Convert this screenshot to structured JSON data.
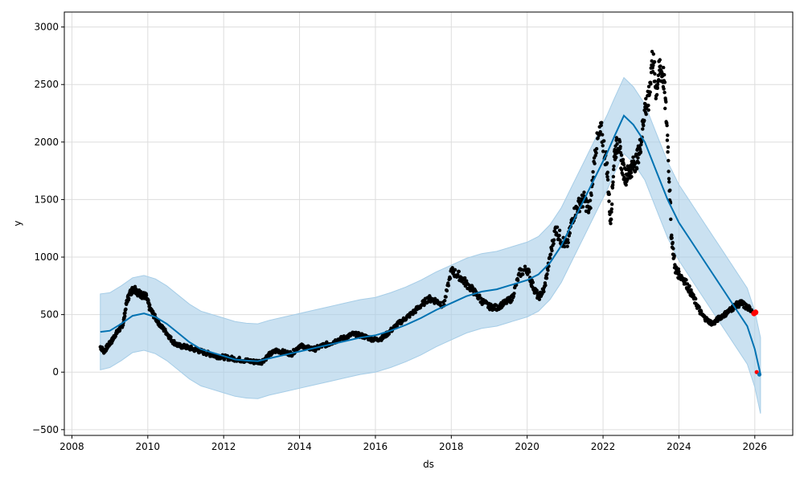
{
  "chart_data": {
    "type": "line",
    "title": "",
    "xlabel": "ds",
    "ylabel": "y",
    "xlim": [
      2007.8,
      2027.0
    ],
    "ylim": [
      -550,
      3130
    ],
    "grid": true,
    "x_ticks": [
      2008,
      2010,
      2012,
      2014,
      2016,
      2018,
      2020,
      2022,
      2024,
      2026
    ],
    "x_tick_labels": [
      "2008",
      "2010",
      "2012",
      "2014",
      "2016",
      "2018",
      "2020",
      "2022",
      "2024",
      "2026"
    ],
    "y_ticks": [
      -500,
      0,
      500,
      1000,
      1500,
      2000,
      2500,
      3000
    ],
    "y_tick_labels": [
      "−500",
      "0",
      "500",
      "1000",
      "1500",
      "2000",
      "2500",
      "3000"
    ],
    "colors": {
      "forecast": "#0072b2",
      "interval": "#a6cde7",
      "observed": "#000000",
      "future": "#ff0000",
      "grid": "#dddddd"
    },
    "forecast": {
      "x": [
        2008.75,
        2009.0,
        2009.3,
        2009.6,
        2009.9,
        2010.2,
        2010.5,
        2010.8,
        2011.1,
        2011.4,
        2011.7,
        2012.0,
        2012.3,
        2012.6,
        2012.9,
        2013.2,
        2013.6,
        2014.0,
        2014.4,
        2014.8,
        2015.2,
        2015.6,
        2016.0,
        2016.4,
        2016.8,
        2017.2,
        2017.6,
        2018.0,
        2018.4,
        2018.8,
        2019.2,
        2019.6,
        2020.0,
        2020.3,
        2020.6,
        2020.9,
        2021.2,
        2021.5,
        2021.8,
        2022.1,
        2022.3,
        2022.55,
        2022.8,
        2023.1,
        2023.4,
        2023.7,
        2024.0,
        2024.3,
        2024.6,
        2024.9,
        2025.2,
        2025.5,
        2025.8,
        2026.0,
        2026.15
      ],
      "y": [
        350,
        360,
        420,
        490,
        510,
        480,
        420,
        340,
        260,
        200,
        170,
        140,
        110,
        100,
        95,
        120,
        150,
        180,
        210,
        240,
        270,
        300,
        320,
        360,
        410,
        470,
        540,
        600,
        660,
        700,
        720,
        760,
        800,
        850,
        950,
        1100,
        1300,
        1500,
        1700,
        1900,
        2050,
        2230,
        2150,
        2000,
        1750,
        1500,
        1300,
        1150,
        1000,
        850,
        700,
        550,
        400,
        200,
        -20
      ],
      "lower": [
        20,
        40,
        100,
        170,
        190,
        160,
        100,
        20,
        -60,
        -120,
        -150,
        -180,
        -210,
        -225,
        -230,
        -200,
        -170,
        -140,
        -110,
        -80,
        -50,
        -20,
        0,
        40,
        90,
        150,
        220,
        280,
        340,
        380,
        400,
        440,
        480,
        530,
        630,
        780,
        980,
        1180,
        1380,
        1580,
        1730,
        1900,
        1820,
        1670,
        1420,
        1170,
        970,
        820,
        670,
        520,
        370,
        220,
        70,
        -130,
        -360
      ],
      "upper": [
        680,
        690,
        750,
        820,
        840,
        810,
        750,
        670,
        590,
        530,
        500,
        470,
        440,
        425,
        420,
        450,
        480,
        510,
        540,
        570,
        600,
        630,
        650,
        690,
        740,
        800,
        870,
        930,
        990,
        1030,
        1050,
        1090,
        1130,
        1180,
        1280,
        1430,
        1630,
        1830,
        2030,
        2230,
        2380,
        2560,
        2480,
        2330,
        2080,
        1830,
        1630,
        1480,
        1330,
        1180,
        1030,
        880,
        730,
        530,
        300
      ]
    },
    "observed": {
      "x": [
        2008.75,
        2008.85,
        2008.95,
        2009.05,
        2009.15,
        2009.25,
        2009.35,
        2009.45,
        2009.55,
        2009.65,
        2009.75,
        2009.85,
        2009.95,
        2010.05,
        2010.2,
        2010.35,
        2010.5,
        2010.65,
        2010.8,
        2011.0,
        2011.2,
        2011.4,
        2011.6,
        2011.8,
        2012.0,
        2012.2,
        2012.4,
        2012.6,
        2012.8,
        2013.0,
        2013.2,
        2013.4,
        2013.6,
        2013.8,
        2014.0,
        2014.2,
        2014.4,
        2014.6,
        2014.8,
        2015.0,
        2015.2,
        2015.4,
        2015.6,
        2015.8,
        2016.0,
        2016.2,
        2016.4,
        2016.6,
        2016.8,
        2017.0,
        2017.2,
        2017.4,
        2017.6,
        2017.8,
        2018.0,
        2018.2,
        2018.4,
        2018.6,
        2018.8,
        2019.0,
        2019.2,
        2019.4,
        2019.6,
        2019.8,
        2020.0,
        2020.15,
        2020.3,
        2020.45,
        2020.6,
        2020.75,
        2020.9,
        2021.05,
        2021.2,
        2021.35,
        2021.5,
        2021.65,
        2021.8,
        2021.95,
        2022.1,
        2022.2,
        2022.3,
        2022.4,
        2022.5,
        2022.6,
        2022.7,
        2022.8,
        2022.9,
        2023.0,
        2023.1,
        2023.2,
        2023.3,
        2023.4,
        2023.5,
        2023.6,
        2023.7,
        2023.8,
        2023.9,
        2024.0,
        2024.15,
        2024.3,
        2024.45,
        2024.6,
        2024.75,
        2024.9,
        2025.05,
        2025.2,
        2025.35,
        2025.5,
        2025.65,
        2025.8,
        2025.95
      ],
      "y": [
        220,
        180,
        230,
        270,
        330,
        370,
        420,
        620,
        700,
        730,
        690,
        670,
        660,
        560,
        470,
        400,
        340,
        270,
        230,
        220,
        200,
        180,
        160,
        140,
        130,
        120,
        110,
        100,
        90,
        90,
        150,
        190,
        170,
        160,
        230,
        210,
        200,
        230,
        250,
        280,
        300,
        330,
        320,
        300,
        280,
        300,
        360,
        420,
        470,
        520,
        580,
        640,
        620,
        580,
        880,
        840,
        770,
        700,
        620,
        570,
        560,
        600,
        640,
        860,
        900,
        750,
        650,
        720,
        1000,
        1250,
        1150,
        1100,
        1350,
        1450,
        1500,
        1400,
        1950,
        2100,
        1800,
        1300,
        1900,
        2000,
        1800,
        1700,
        1750,
        1800,
        1850,
        2000,
        2300,
        2350,
        2750,
        2450,
        2650,
        2550,
        2050,
        1200,
        900,
        850,
        800,
        700,
        600,
        500,
        450,
        420,
        470,
        500,
        540,
        580,
        600,
        560,
        540
      ],
      "future_x": [
        2025.98,
        2026.02
      ],
      "future_y": [
        510,
        520
      ],
      "end_x": [
        2026.05,
        2026.12
      ],
      "end_y": [
        0,
        -20
      ]
    }
  }
}
